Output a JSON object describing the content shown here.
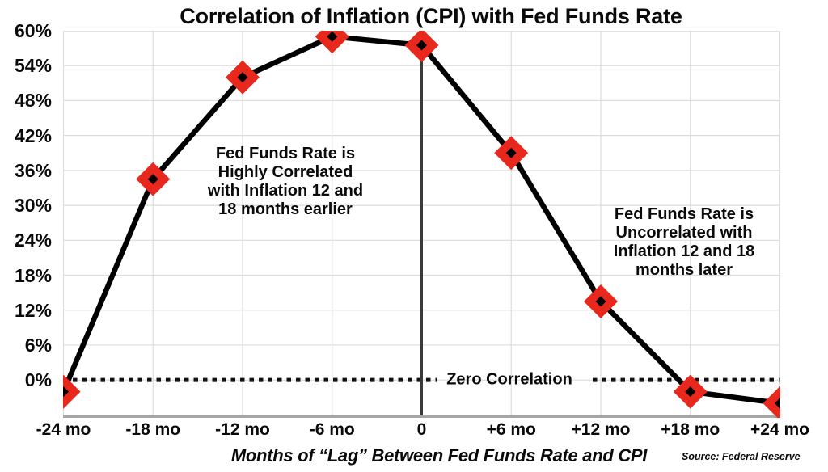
{
  "title": "Correlation of Inflation (CPI) with Fed Funds Rate",
  "chart_data": {
    "type": "line",
    "title": "Correlation of Inflation (CPI) with Fed Funds Rate",
    "categories": [
      "-24 mo",
      "-18 mo",
      "-12 mo",
      "-6 mo",
      "0",
      "+6 mo",
      "+12 mo",
      "+18 mo",
      "+24 mo"
    ],
    "values": [
      -2,
      34.5,
      52,
      59,
      57.5,
      39,
      13.5,
      -2,
      -4
    ],
    "zero_lag_category": "0",
    "y_ticks": [
      0,
      6,
      12,
      18,
      24,
      30,
      36,
      42,
      48,
      54,
      60
    ],
    "y_tick_suffix": "%",
    "ylim": [
      -6.5,
      60
    ],
    "xlabel": "Months of “Lag” Between Fed Funds Rate and CPI",
    "ylabel": "",
    "grid": true,
    "legend": "none",
    "marker": "diamond",
    "zero_line_label": "Zero Correlation",
    "colors": {
      "line": "#000000",
      "marker_fill": "#e8271d",
      "marker_center": "#000000",
      "grid": "#dcdcdc",
      "axis": "#a6a6a6",
      "zero_vertical_line": "#3a3a3a",
      "dotted_zero_line": "#111111",
      "text": "#0a0a0a"
    }
  },
  "annotations": {
    "left": "Fed Funds Rate is\nHighly Correlated\nwith Inflation 12 and\n18 months earlier",
    "right": "Fed Funds Rate is\nUncorrelated with\nInflation 12 and 18\nmonths later"
  },
  "source": "Source: Federal Reserve"
}
